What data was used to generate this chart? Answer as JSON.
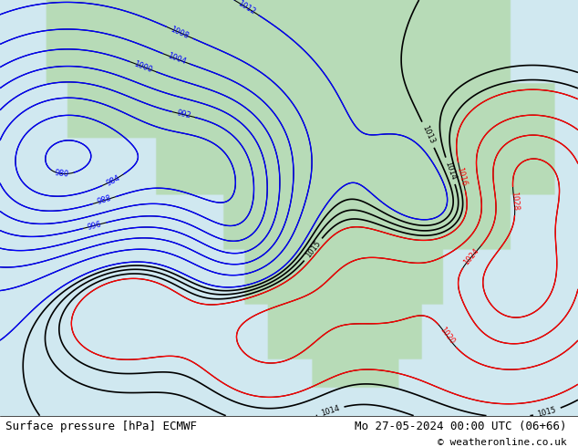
{
  "title_left": "Surface pressure [hPa] ECMWF",
  "title_right": "Mo 27-05-2024 00:00 UTC (06+66)",
  "copyright": "© weatheronline.co.uk",
  "background_color": "#d0e8f0",
  "land_color": "#b8dbb8",
  "figsize": [
    6.34,
    4.9
  ],
  "dpi": 100
}
